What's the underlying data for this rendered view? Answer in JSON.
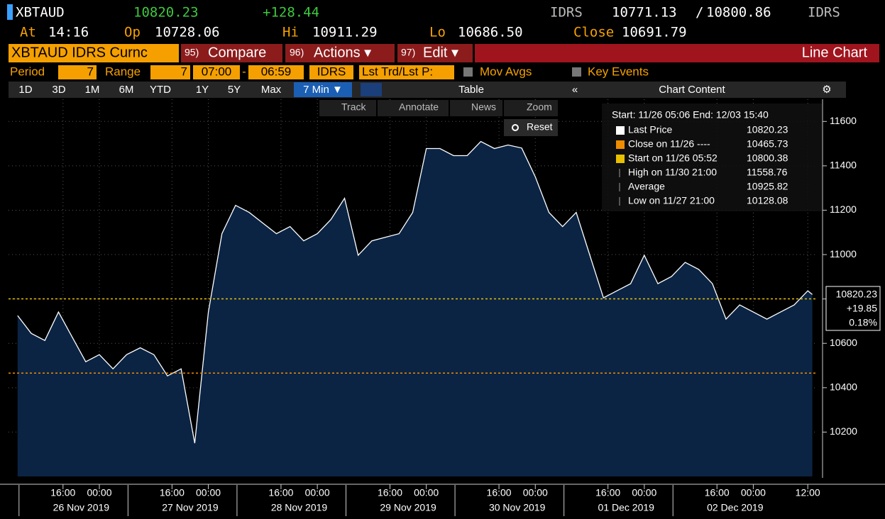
{
  "header": {
    "ticker": "XBTAUD",
    "price": "10820.23",
    "change": "+128.44",
    "src1": "IDRS",
    "bid": "10771.13",
    "slash": "/",
    "ask": "10800.86",
    "src2": "IDRS",
    "at_label": "At",
    "at": "14:16",
    "op_label": "Op",
    "op": "10728.06",
    "hi_label": "Hi",
    "hi": "10911.29",
    "lo_label": "Lo",
    "lo": "10686.50",
    "close_label": "Close",
    "close": "10691.79"
  },
  "menu": {
    "security": "XBTAUD IDRS Curnc",
    "compare_num": "95)",
    "compare": "Compare",
    "actions_num": "96)",
    "actions": "Actions ▾",
    "edit_num": "97)",
    "edit": "Edit ▾",
    "chart_type": "Line Chart"
  },
  "settings": {
    "period_label": "Period",
    "period": "7",
    "range_label": "Range",
    "range": "7",
    "from": "07:00",
    "dash": "-",
    "to": "06:59",
    "source": "IDRS",
    "price_type": "Lst Trd/Lst P:",
    "mov_avgs": "Mov Avgs",
    "key_events": "Key Events"
  },
  "toolbar": {
    "ranges": [
      "1D",
      "3D",
      "1M",
      "6M",
      "YTD",
      "1Y",
      "5Y",
      "Max"
    ],
    "interval": "7 Min ▼",
    "table": "Table",
    "collapse": "«",
    "chart_content": "Chart Content",
    "settings_icon": "⚙"
  },
  "tools": {
    "track": "Track",
    "annotate": "Annotate",
    "news": "News",
    "zoom": "Zoom",
    "reset": "Reset"
  },
  "chart_data": {
    "type": "line",
    "x": [
      "2019-11-26 06:00",
      "2019-11-26 09:00",
      "2019-11-26 12:00",
      "2019-11-26 15:00",
      "2019-11-26 18:00",
      "2019-11-26 21:00",
      "2019-11-27 00:00",
      "2019-11-27 03:00",
      "2019-11-27 06:00",
      "2019-11-27 09:00",
      "2019-11-27 12:00",
      "2019-11-27 15:00",
      "2019-11-27 18:00",
      "2019-11-27 21:00",
      "2019-11-28 00:00",
      "2019-11-28 03:00",
      "2019-11-28 06:00",
      "2019-11-28 09:00",
      "2019-11-28 12:00",
      "2019-11-28 15:00",
      "2019-11-28 18:00",
      "2019-11-28 21:00",
      "2019-11-29 00:00",
      "2019-11-29 03:00",
      "2019-11-29 06:00",
      "2019-11-29 09:00",
      "2019-11-29 12:00",
      "2019-11-29 15:00",
      "2019-11-29 18:00",
      "2019-11-29 21:00",
      "2019-11-30 00:00",
      "2019-11-30 03:00",
      "2019-11-30 06:00",
      "2019-11-30 09:00",
      "2019-11-30 12:00",
      "2019-11-30 15:00",
      "2019-11-30 18:00",
      "2019-11-30 21:00",
      "2019-12-01 00:00",
      "2019-12-01 03:00",
      "2019-12-01 06:00",
      "2019-12-01 09:00",
      "2019-12-01 12:00",
      "2019-12-01 15:00",
      "2019-12-01 18:00",
      "2019-12-01 21:00",
      "2019-12-02 00:00",
      "2019-12-02 03:00",
      "2019-12-02 06:00",
      "2019-12-02 09:00",
      "2019-12-02 12:00",
      "2019-12-02 15:00",
      "2019-12-02 18:00",
      "2019-12-02 21:00",
      "2019-12-03 00:00",
      "2019-12-03 03:00",
      "2019-12-03 06:00",
      "2019-12-03 09:00",
      "2019-12-03 12:00",
      "2019-12-03 13:00"
    ],
    "series": [
      {
        "name": "Last Price",
        "color": "#ffffff",
        "values": [
          10725,
          10645,
          10613,
          10741,
          10629,
          10517,
          10549,
          10485,
          10549,
          10580,
          10549,
          10453,
          10485,
          10150,
          10741,
          11094,
          11222,
          11190,
          11142,
          11094,
          11126,
          11062,
          11094,
          11158,
          11254,
          10997,
          11062,
          11078,
          11094,
          11190,
          11478,
          11478,
          11446,
          11446,
          11510,
          11478,
          11494,
          11480,
          11350,
          11190,
          11126,
          11190,
          10997,
          10805,
          10837,
          10869,
          10997,
          10869,
          10901,
          10965,
          10933,
          10869,
          10709,
          10773,
          10741,
          10709,
          10741,
          10773,
          10837,
          10820
        ]
      }
    ],
    "xlim": [
      "2019-11-26 04:00",
      "2019-12-03 14:00"
    ],
    "xticks": [
      {
        "value": "2019-11-26 16:00",
        "label": "16:00"
      },
      {
        "value": "2019-11-27 00:00",
        "label": "00:00"
      },
      {
        "value": "2019-11-27 16:00",
        "label": "16:00"
      },
      {
        "value": "2019-11-28 00:00",
        "label": "00:00"
      },
      {
        "value": "2019-11-28 16:00",
        "label": "16:00"
      },
      {
        "value": "2019-11-29 00:00",
        "label": "00:00"
      },
      {
        "value": "2019-11-29 16:00",
        "label": "16:00"
      },
      {
        "value": "2019-11-30 00:00",
        "label": "00:00"
      },
      {
        "value": "2019-11-30 16:00",
        "label": "16:00"
      },
      {
        "value": "2019-12-01 00:00",
        "label": "00:00"
      },
      {
        "value": "2019-12-01 16:00",
        "label": "16:00"
      },
      {
        "value": "2019-12-02 00:00",
        "label": "00:00"
      },
      {
        "value": "2019-12-02 16:00",
        "label": "16:00"
      },
      {
        "value": "2019-12-03 00:00",
        "label": "00:00"
      },
      {
        "value": "2019-12-03 12:00",
        "label": "12:00"
      }
    ],
    "date_labels": [
      "26 Nov 2019",
      "27 Nov 2019",
      "28 Nov 2019",
      "29 Nov 2019",
      "30 Nov 2019",
      "01 Dec 2019",
      "02 Dec 2019"
    ],
    "ylim": [
      10000,
      11700
    ],
    "yticks": [
      10200,
      10400,
      10600,
      10800,
      11000,
      11200,
      11400,
      11600
    ],
    "grid": true,
    "legend_title": "Start: 11/26 05:06 End: 12/03 15:40",
    "legend_items": [
      {
        "label": "Last Price",
        "value": 10820.23,
        "color": "#ffffff"
      },
      {
        "label": "Close on 11/26 ----",
        "value": 10465.73,
        "color": "#f08c00"
      },
      {
        "label": "Start on 11/26 05:52",
        "value": 10800.38,
        "color": "#e8c000"
      },
      {
        "label": "High on 11/30 21:00",
        "value": 11558.76
      },
      {
        "label": "Average",
        "value": 10925.82
      },
      {
        "label": "Low on 11/27 21:00",
        "value": 10128.08
      }
    ],
    "last_label": [
      "10820.23",
      "+19.85",
      "0.18%"
    ]
  }
}
